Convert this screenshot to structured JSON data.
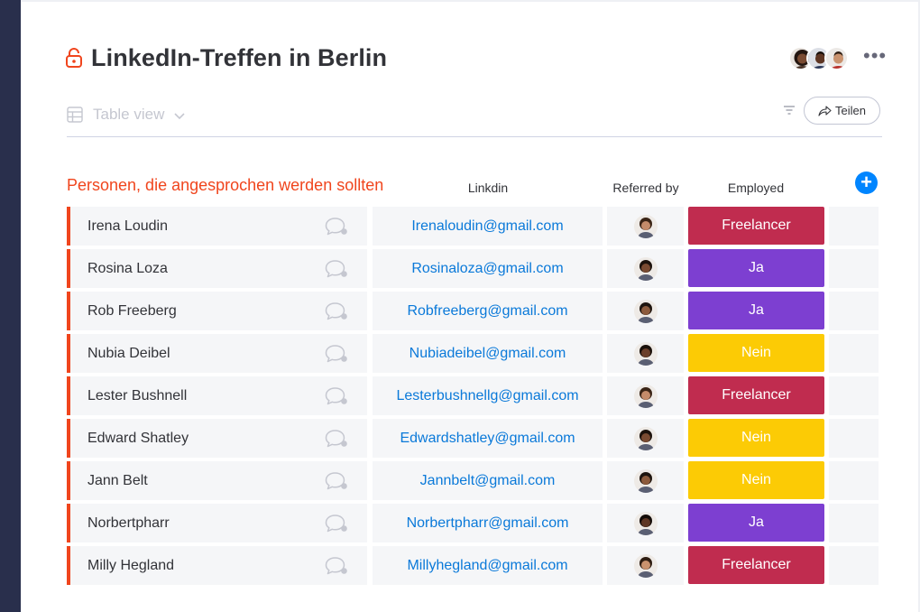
{
  "board": {
    "title": "LinkedIn-Treffen in Berlin",
    "view_label": "Table view",
    "share_label": "Teilen"
  },
  "group": {
    "title": "Personen, die angesprochen werden sollten",
    "columns": {
      "linkdin": "Linkdin",
      "referred_by": "Referred by",
      "employed": "Employed"
    }
  },
  "colors": {
    "accent": "#f0451d",
    "link": "#0a79d9",
    "status_freelancer": "#c02c4f",
    "status_ja": "#7d3fd1",
    "status_nein": "#fccb05",
    "add_button": "#0085ff"
  },
  "rows": [
    {
      "name": "Irena Loudin",
      "email": "Irenaloudin@gmail.com",
      "employed": "Freelancer",
      "status": "freelancer",
      "referrer": {
        "skin": "#c48b6a",
        "hair": "#3a2416"
      }
    },
    {
      "name": "Rosina Loza",
      "email": "Rosinaloza@gmail.com",
      "employed": "Ja",
      "status": "ja",
      "referrer": {
        "skin": "#7a4b32",
        "hair": "#1c120c"
      }
    },
    {
      "name": "Rob Freeberg",
      "email": "Robfreeberg@gmail.com",
      "employed": "Ja",
      "status": "ja",
      "referrer": {
        "skin": "#8c5a3c",
        "hair": "#1e140e"
      }
    },
    {
      "name": "Nubia Deibel",
      "email": "Nubiadeibel@gmail.com",
      "employed": "Nein",
      "status": "nein",
      "referrer": {
        "skin": "#6b3f2a",
        "hair": "#1a100a"
      }
    },
    {
      "name": "Lester Bushnell",
      "email": "Lesterbushnellg@gmail.com",
      "employed": "Freelancer",
      "status": "freelancer",
      "referrer": {
        "skin": "#c48b6a",
        "hair": "#3a2416"
      }
    },
    {
      "name": "Edward Shatley",
      "email": "Edwardshatley@gmail.com",
      "employed": "Nein",
      "status": "nein",
      "referrer": {
        "skin": "#7a4b32",
        "hair": "#1c120c"
      }
    },
    {
      "name": "Jann Belt",
      "email": "Jannbelt@gmail.com",
      "employed": "Nein",
      "status": "nein",
      "referrer": {
        "skin": "#8c5a3c",
        "hair": "#1e140e"
      }
    },
    {
      "name": "Norbertpharr",
      "email": "Norbertpharr@gmail.com",
      "employed": "Ja",
      "status": "ja",
      "referrer": {
        "skin": "#5e3624",
        "hair": "#140c08"
      }
    },
    {
      "name": "Milly Hegland",
      "email": "Millyhegland@gmail.com",
      "employed": "Freelancer",
      "status": "freelancer",
      "referrer": {
        "skin": "#c9926e",
        "hair": "#2e1d12"
      }
    }
  ],
  "icons": {
    "lock": "lock-icon",
    "table": "table-icon",
    "chevron": "chevron-down-icon",
    "filter": "filter-icon",
    "share": "share-arrow-icon",
    "more": "more-icon",
    "chat": "chat-bubble-icon",
    "add": "plus-icon"
  }
}
